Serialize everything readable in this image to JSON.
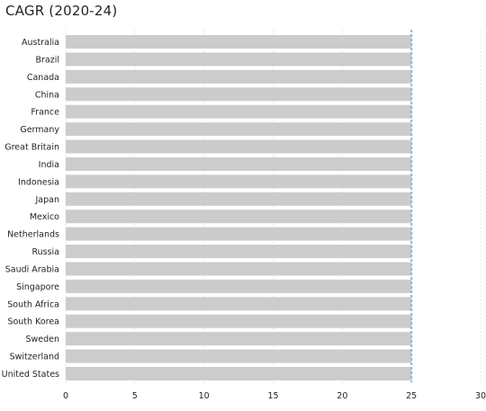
{
  "chart_data": {
    "type": "bar",
    "orientation": "horizontal",
    "title": "CAGR (2020-24)",
    "categories": [
      "Australia",
      "Brazil",
      "Canada",
      "China",
      "France",
      "Germany",
      "Great Britain",
      "India",
      "Indonesia",
      "Japan",
      "Mexico",
      "Netherlands",
      "Russia",
      "Saudi Arabia",
      "Singapore",
      "South Africa",
      "South Korea",
      "Sweden",
      "Switzerland",
      "United States"
    ],
    "values": [
      25,
      25,
      25,
      25,
      25,
      25,
      25,
      25,
      25,
      25,
      25,
      25,
      25,
      25,
      25,
      25,
      25,
      25,
      25,
      25
    ],
    "xlim": [
      0,
      30
    ],
    "xticks": [
      "0",
      "5",
      "10",
      "15",
      "20",
      "25",
      "30"
    ],
    "grid": "vertical-dotted",
    "reference_line": {
      "value": 25,
      "style": "dashed"
    },
    "colors": {
      "bar": "#cccccc",
      "reference_line": "#89b8e0",
      "grid": "#d9d9d9",
      "text": "#252423"
    }
  }
}
